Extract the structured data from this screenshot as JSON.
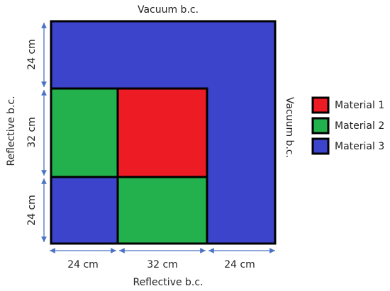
{
  "boundaries": {
    "top": "Vacuum b.c.",
    "right": "Vacuum b.c.",
    "left": "Reflective b.c.",
    "bottom": "Reflective b.c."
  },
  "dimensions": {
    "left": [
      "24 cm",
      "32 cm",
      "24 cm"
    ],
    "bottom": [
      "24 cm",
      "32 cm",
      "24 cm"
    ]
  },
  "legend": [
    {
      "label": "Material 1"
    },
    {
      "label": "Material 2"
    },
    {
      "label": "Material 3"
    }
  ]
}
